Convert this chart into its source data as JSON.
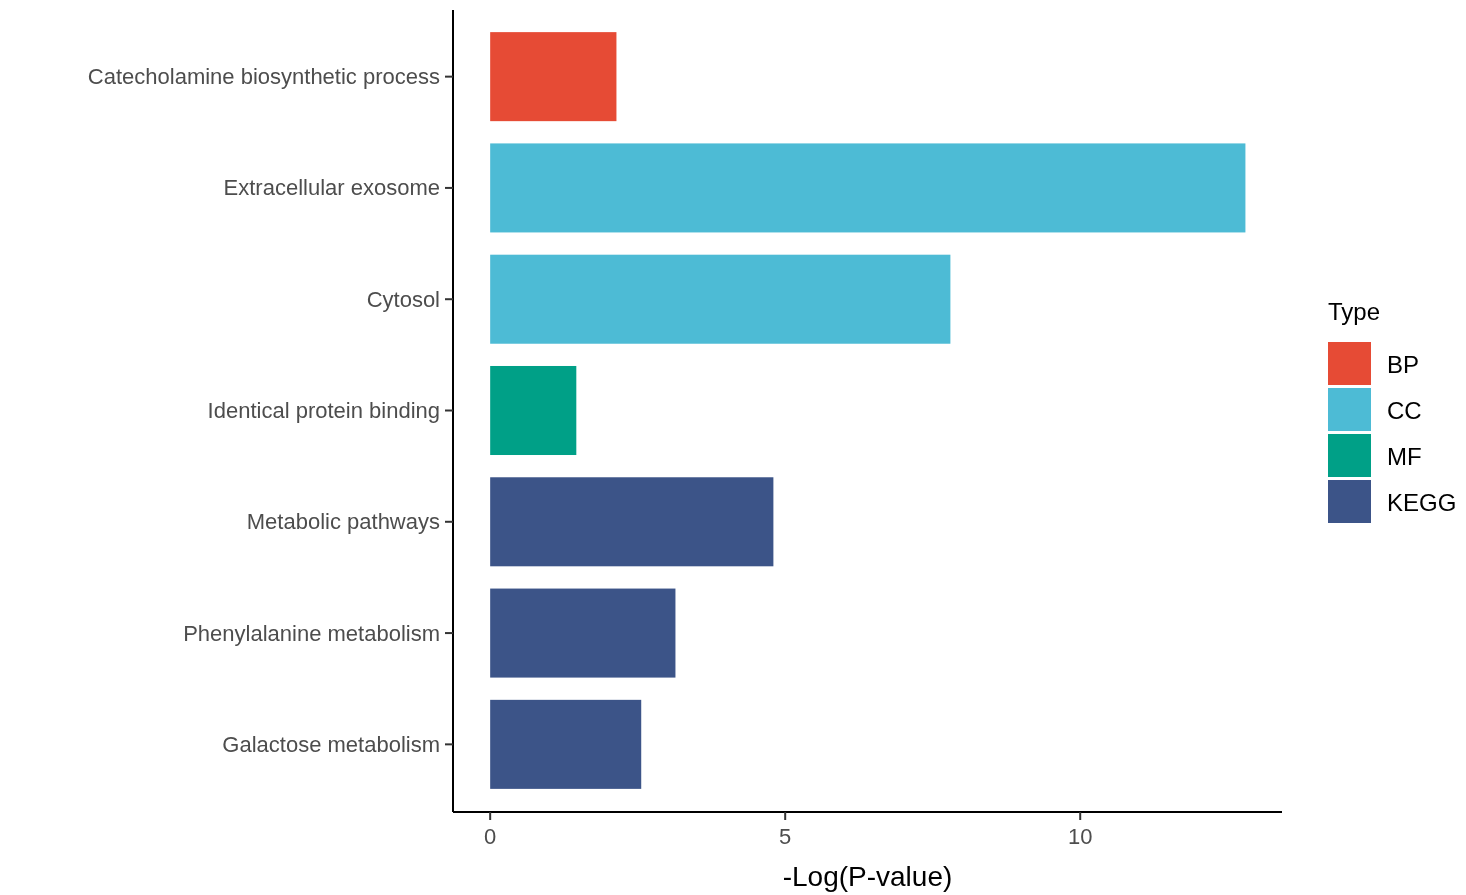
{
  "chart_data": {
    "type": "bar",
    "orientation": "horizontal",
    "xlabel": "-Log(P-value)",
    "legend_title": "Type",
    "legend": "right",
    "grid": false,
    "categories": [
      "Catecholamine biosynthetic process",
      "Extracellular exosome",
      "Cytosol",
      "Identical protein binding",
      "Metabolic pathways",
      "Phenylalanine metabolism",
      "Galactose metabolism"
    ],
    "series": [
      {
        "name": "BP",
        "color": "#e64b35",
        "values": [
          2.14,
          null,
          null,
          null,
          null,
          null,
          null
        ]
      },
      {
        "name": "CC",
        "color": "#4dbbd5",
        "values": [
          null,
          12.8,
          7.8,
          null,
          null,
          null,
          null
        ]
      },
      {
        "name": "MF",
        "color": "#00a087",
        "values": [
          null,
          null,
          null,
          1.46,
          null,
          null,
          null
        ]
      },
      {
        "name": "KEGG",
        "color": "#3c5488",
        "values": [
          null,
          null,
          null,
          null,
          4.8,
          3.14,
          2.56
        ]
      }
    ],
    "xlim": [
      -0.63,
      13.42
    ],
    "xticks": [
      0,
      5,
      10
    ]
  }
}
